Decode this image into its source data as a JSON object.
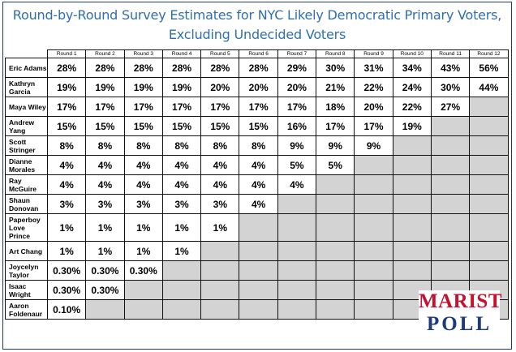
{
  "title_line1": "Round-by-Round Survey Estimates for NYC Likely Democratic Primary Voters,",
  "title_line2": "Excluding Undecided Voters",
  "logo": {
    "line1": "MARIST",
    "line2": "POLL",
    "colors": {
      "line1": "#c8102e",
      "line2": "#1f3a7a"
    }
  },
  "chart_data": {
    "type": "table",
    "title": "Round-by-Round Survey Estimates for NYC Likely Democratic Primary Voters, Excluding Undecided Voters",
    "columns": [
      "Round 1",
      "Round 2",
      "Round 3",
      "Round 4",
      "Round 5",
      "Round 6",
      "Round 7",
      "Round 8",
      "Round 9",
      "Round 10",
      "Round 11",
      "Round 12"
    ],
    "rows": [
      {
        "name": "Eric Adams",
        "values": [
          "28%",
          "28%",
          "28%",
          "28%",
          "28%",
          "28%",
          "29%",
          "30%",
          "31%",
          "34%",
          "43%",
          "56%"
        ]
      },
      {
        "name": "Kathryn Garcia",
        "values": [
          "19%",
          "19%",
          "19%",
          "19%",
          "20%",
          "20%",
          "20%",
          "21%",
          "22%",
          "24%",
          "30%",
          "44%"
        ]
      },
      {
        "name": "Maya Wiley",
        "values": [
          "17%",
          "17%",
          "17%",
          "17%",
          "17%",
          "17%",
          "17%",
          "18%",
          "20%",
          "22%",
          "27%"
        ]
      },
      {
        "name": "Andrew Yang",
        "values": [
          "15%",
          "15%",
          "15%",
          "15%",
          "15%",
          "15%",
          "16%",
          "17%",
          "17%",
          "19%"
        ]
      },
      {
        "name": "Scott Stringer",
        "values": [
          "8%",
          "8%",
          "8%",
          "8%",
          "8%",
          "8%",
          "9%",
          "9%",
          "9%"
        ]
      },
      {
        "name": "Dianne Morales",
        "values": [
          "4%",
          "4%",
          "4%",
          "4%",
          "4%",
          "4%",
          "5%",
          "5%"
        ]
      },
      {
        "name": "Ray McGuire",
        "values": [
          "4%",
          "4%",
          "4%",
          "4%",
          "4%",
          "4%",
          "4%"
        ]
      },
      {
        "name": "Shaun Donovan",
        "values": [
          "3%",
          "3%",
          "3%",
          "3%",
          "3%",
          "4%"
        ]
      },
      {
        "name": "Paperboy Love Prince",
        "values": [
          "1%",
          "1%",
          "1%",
          "1%",
          "1%"
        ]
      },
      {
        "name": "Art Chang",
        "values": [
          "1%",
          "1%",
          "1%",
          "1%"
        ]
      },
      {
        "name": "Joycelyn Taylor",
        "values": [
          "0.30%",
          "0.30%",
          "0.30%"
        ]
      },
      {
        "name": "Isaac Wright",
        "values": [
          "0.30%",
          "0.30%"
        ]
      },
      {
        "name": "Aaron Foldenaur",
        "values": [
          "0.10%"
        ]
      }
    ],
    "colors": {
      "title": "#2f6fae",
      "eliminated_cell": "#d3d3d3"
    }
  }
}
